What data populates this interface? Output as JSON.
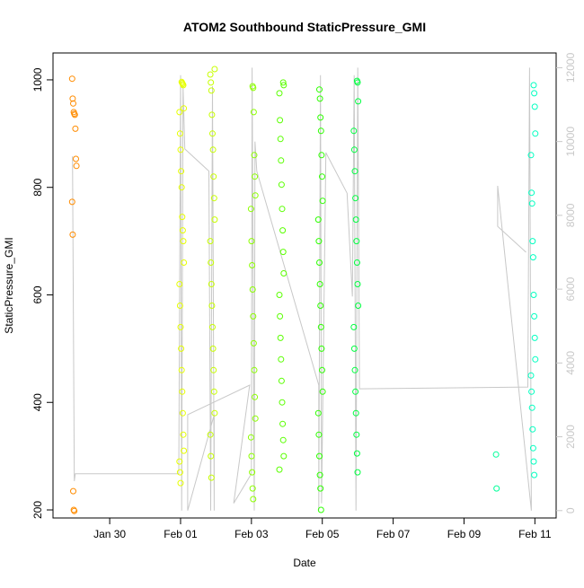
{
  "chart_data": {
    "type": "scatter",
    "title": "ATOM2 Southbound StaticPressure_GMI",
    "xlabel": "Date",
    "ylabel": "StaticPressure_GMI",
    "x_unit": "days since Feb 01 00:00",
    "xlim": [
      -3.6,
      10.6
    ],
    "ylim": [
      185,
      1050
    ],
    "y2lim": [
      -200,
      12400
    ],
    "x_ticks": [
      {
        "value": -2,
        "label": "Jan 30"
      },
      {
        "value": 0,
        "label": "Feb 01"
      },
      {
        "value": 2,
        "label": "Feb 03"
      },
      {
        "value": 4,
        "label": "Feb 05"
      },
      {
        "value": 6,
        "label": "Feb 07"
      },
      {
        "value": 8,
        "label": "Feb 09"
      },
      {
        "value": 10,
        "label": "Feb 11"
      }
    ],
    "y_ticks": [
      200,
      400,
      600,
      800,
      1000
    ],
    "y2_ticks": [
      0,
      2000,
      4000,
      6000,
      8000,
      10000,
      12000
    ],
    "grid": false,
    "series": [
      {
        "name": "StaticPressure_GMI",
        "marker": "open-circle",
        "color_scale": "time (orange → yellow → green → cyan)",
        "clusters": [
          {
            "x": -3.0,
            "color": "#FF8C00",
            "values": [
              1002,
              965,
              956,
              940,
              937,
              935,
              909,
              853,
              840,
              773,
              712,
              235,
              200,
              198
            ]
          },
          {
            "x": 0.03,
            "color": "#E6FF00",
            "values": [
              996,
              994,
              992,
              990,
              947,
              940,
              900,
              870,
              830,
              800,
              745,
              720,
              700,
              660,
              620,
              580,
              540,
              500,
              460,
              420,
              380,
              340,
              310,
              290,
              270,
              250
            ]
          },
          {
            "x": 0.9,
            "color": "#C8FF00",
            "values": [
              1020,
              1010,
              995,
              980,
              935,
              900,
              870,
              820,
              780,
              740,
              700,
              660,
              620,
              580,
              540,
              500,
              460,
              420,
              380,
              340,
              300,
              260
            ]
          },
          {
            "x": 2.05,
            "color": "#8CFF00",
            "values": [
              988,
              985,
              940,
              860,
              820,
              785,
              760,
              700,
              655,
              610,
              560,
              510,
              460,
              410,
              370,
              335,
              300,
              270,
              240,
              220
            ]
          },
          {
            "x": 2.85,
            "color": "#5AFF00",
            "values": [
              995,
              990,
              975,
              925,
              890,
              850,
              805,
              760,
              720,
              680,
              640,
              600,
              560,
              520,
              480,
              440,
              400,
              360,
              330,
              300,
              275
            ]
          },
          {
            "x": 3.95,
            "color": "#2DFF00",
            "values": [
              982,
              965,
              930,
              905,
              860,
              820,
              775,
              740,
              700,
              660,
              620,
              580,
              540,
              500,
              460,
              420,
              380,
              340,
              300,
              265,
              240,
              200
            ]
          },
          {
            "x": 4.95,
            "color": "#00FF40",
            "values": [
              998,
              995,
              960,
              905,
              870,
              830,
              780,
              740,
              700,
              660,
              620,
              580,
              540,
              500,
              460,
              420,
              380,
              340,
              305,
              270
            ]
          },
          {
            "x": 8.95,
            "color": "#00FF9A",
            "values": [
              303,
              240
            ]
          },
          {
            "x": 9.95,
            "color": "#00FFC0",
            "values": [
              990,
              975,
              950,
              900,
              860,
              790,
              770,
              700,
              670,
              600,
              560,
              520,
              480,
              450,
              420,
              390,
              350,
              315,
              290,
              265
            ]
          }
        ]
      },
      {
        "name": "altitude track (right axis)",
        "color": "#c8c8c8",
        "style": "line",
        "points": [
          [
            -3.05,
            9600
          ],
          [
            -3.0,
            800
          ],
          [
            -2.97,
            1000
          ],
          [
            -0.05,
            1000
          ],
          [
            0.0,
            11800
          ],
          [
            0.03,
            0
          ],
          [
            0.07,
            11500
          ],
          [
            0.12,
            9800
          ],
          [
            0.8,
            9200
          ],
          [
            0.85,
            0
          ],
          [
            0.9,
            11500
          ],
          [
            0.95,
            0
          ],
          [
            0.95,
            2600
          ],
          [
            0.2,
            0
          ],
          [
            0.2,
            2600
          ],
          [
            1.95,
            3400
          ],
          [
            1.5,
            200
          ],
          [
            2.0,
            1000
          ],
          [
            2.02,
            12000
          ],
          [
            2.08,
            0
          ],
          [
            2.1,
            10000
          ],
          [
            2.15,
            9200
          ],
          [
            3.9,
            3400
          ],
          [
            3.9,
            0
          ],
          [
            3.95,
            11800
          ],
          [
            3.98,
            200
          ],
          [
            4.1,
            9700
          ],
          [
            4.7,
            8600
          ],
          [
            4.85,
            5800
          ],
          [
            4.9,
            11800
          ],
          [
            4.95,
            0
          ],
          [
            5.0,
            12000
          ],
          [
            5.05,
            3300
          ],
          [
            9.8,
            3350
          ],
          [
            9.85,
            12000
          ],
          [
            9.9,
            0
          ],
          [
            8.95,
            8800
          ],
          [
            8.95,
            7700
          ],
          [
            9.75,
            7000
          ]
        ]
      }
    ]
  }
}
